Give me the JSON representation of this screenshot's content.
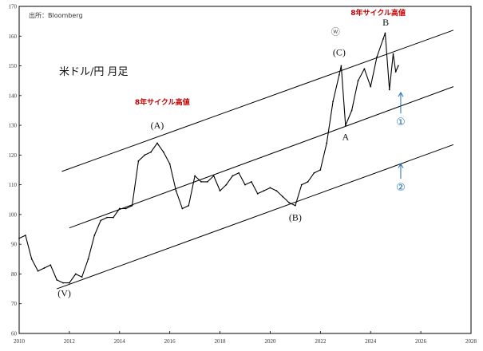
{
  "chart_data": {
    "type": "line",
    "title": "米ドル/円 月足",
    "source": "出所：Bloomberg",
    "xlim": [
      2010,
      2028
    ],
    "ylim": [
      60,
      170
    ],
    "x_ticks": [
      "2010",
      "2012",
      "2014",
      "2016",
      "2018",
      "2020",
      "2022",
      "2024",
      "2026",
      "2028"
    ],
    "y_ticks": [
      "60",
      "70",
      "80",
      "90",
      "100",
      "110",
      "120",
      "130",
      "140",
      "150",
      "160",
      "170"
    ],
    "grid": false,
    "legend": "none",
    "colors": {
      "price": "#000000",
      "channel": "#000000",
      "label_red": "#c00000",
      "marker_blue": "#1f6fb2"
    },
    "price_series": {
      "x": [
        2010.0,
        2010.25,
        2010.5,
        2010.75,
        2011.0,
        2011.25,
        2011.5,
        2011.75,
        2012.0,
        2012.25,
        2012.5,
        2012.75,
        2013.0,
        2013.25,
        2013.5,
        2013.75,
        2014.0,
        2014.25,
        2014.5,
        2014.75,
        2015.0,
        2015.25,
        2015.5,
        2015.75,
        2016.0,
        2016.25,
        2016.5,
        2016.75,
        2017.0,
        2017.25,
        2017.5,
        2017.75,
        2018.0,
        2018.25,
        2018.5,
        2018.75,
        2019.0,
        2019.25,
        2019.5,
        2019.75,
        2020.0,
        2020.25,
        2020.5,
        2020.75,
        2021.0,
        2021.25,
        2021.5,
        2021.75,
        2022.0,
        2022.25,
        2022.5,
        2022.75,
        2022.83,
        2023.0,
        2023.25,
        2023.5,
        2023.75,
        2024.0,
        2024.25,
        2024.5,
        2024.58,
        2024.75,
        2024.9,
        2025.0,
        2025.1
      ],
      "y": [
        92,
        93,
        85,
        81,
        82,
        83,
        78,
        77,
        77,
        80,
        79,
        85,
        93,
        98,
        99,
        99,
        102,
        102,
        103,
        118,
        120,
        121,
        124,
        121,
        117,
        108,
        102,
        103,
        113,
        111,
        111,
        113,
        108,
        110,
        113,
        114,
        110,
        111,
        107,
        108,
        109,
        108,
        106,
        104,
        103,
        110,
        111,
        114,
        115,
        124,
        138,
        147,
        150,
        130,
        135,
        145,
        149,
        143,
        153,
        159,
        161,
        142,
        154,
        148,
        150
      ]
    },
    "channels": [
      {
        "name": "upper",
        "x": [
          2011.7,
          2027.3
        ],
        "y": [
          114.5,
          162
        ]
      },
      {
        "name": "middle",
        "x": [
          2012.0,
          2027.3
        ],
        "y": [
          95.5,
          143
        ]
      },
      {
        "name": "lower",
        "x": [
          2011.5,
          2027.3
        ],
        "y": [
          75,
          123.5
        ]
      }
    ],
    "annotations": {
      "wave_A_big": {
        "text": "(A)",
        "x": 2015.5,
        "y": 129
      },
      "wave_B_big": {
        "text": "(B)",
        "x": 2021.0,
        "y": 98
      },
      "wave_C_big": {
        "text": "(C)",
        "x": 2022.75,
        "y": 153.5
      },
      "wave_V": {
        "text": "(V)",
        "x": 2011.8,
        "y": 72.5
      },
      "wave_A": {
        "text": "A",
        "x": 2023.0,
        "y": 125
      },
      "wave_B": {
        "text": "B",
        "x": 2024.6,
        "y": 163.5
      },
      "circled_w": {
        "text": "ⓦ",
        "x": 2022.6,
        "y": 160.5
      },
      "label_red_1": {
        "text": "8年サイクル高値",
        "x": 2015.7,
        "y": 137
      },
      "label_red_2": {
        "text": "8年サイクル高値",
        "x": 2024.3,
        "y": 167
      },
      "marker_1": {
        "text": "①",
        "x": 2025.2,
        "y": 130,
        "arrow_from": 134,
        "arrow_to": 141
      },
      "marker_2": {
        "text": "②",
        "x": 2025.2,
        "y": 108,
        "arrow_from": 112,
        "arrow_to": 117
      }
    }
  }
}
